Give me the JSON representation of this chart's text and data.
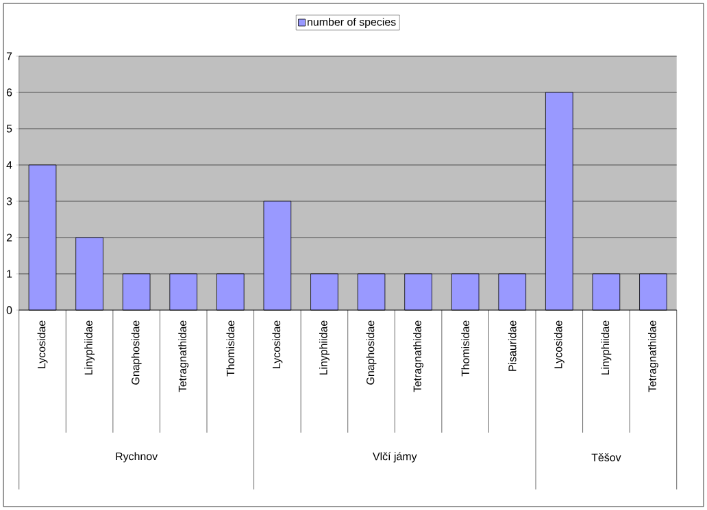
{
  "chart_data": {
    "type": "bar",
    "categories": [
      "Lycosidae",
      "Linyphiidae",
      "Gnaphosidae",
      "Tetragnathidae",
      "Thomisidae",
      "Lycosidae",
      "Linyphiidae",
      "Gnaphosidae",
      "Tetragnathidae",
      "Thomisidae",
      "Pisauridae",
      "Lycosidae",
      "Linyphiidae",
      "Tetragnathidae"
    ],
    "series": [
      {
        "name": "number of species",
        "color": "#9999ff",
        "values": [
          4,
          2,
          1,
          1,
          1,
          3,
          1,
          1,
          1,
          1,
          1,
          6,
          1,
          1
        ]
      }
    ],
    "annotations": [
      "Rychnov",
      "Vlčí jámy",
      "Těšov"
    ],
    "ylim": [
      0,
      7
    ],
    "yticks": [
      0,
      1,
      2,
      3,
      4,
      5,
      6,
      7
    ],
    "grid": "y",
    "legend": "top"
  }
}
